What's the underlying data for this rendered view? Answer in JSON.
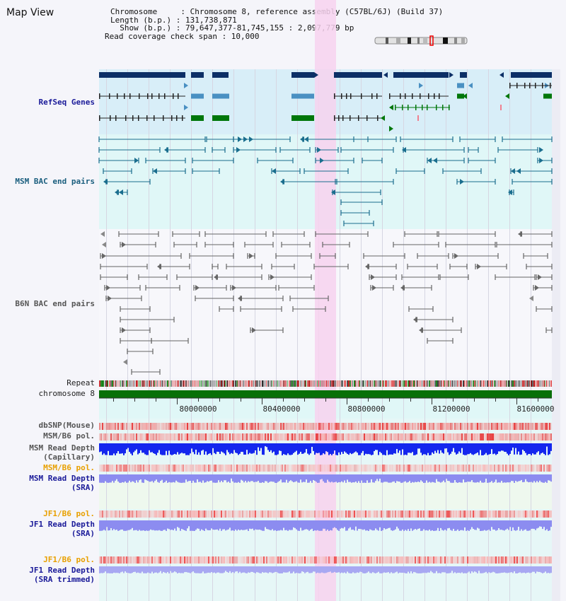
{
  "page_title": "Map View",
  "info": {
    "chromosome_line": "Chromosome     : Chromosome 8, reference assembly (C57BL/6J) (Build 37)",
    "length_line": "Length (b.p.) : 131,738,871",
    "show_line": "  Show (b.p.) : 79,647,377-81,745,155 : 2,097,779 bp",
    "coverage_line": "Read coverage check span : 10,000"
  },
  "tracks": {
    "refseq": "RefSeq Genes",
    "msm_bac": "MSM BAC end pairs",
    "b6n_bac": "B6N BAC end pairs",
    "repeat": "Repeat",
    "chromosome": "chromosome 8",
    "dbsnp": "dbSNP(Mouse)",
    "msm_pol_1": "MSM/B6 pol.",
    "msm_depth_cap_1": "MSM Read Depth",
    "msm_depth_cap_2": "(Capillary)",
    "msm_pol_2": "MSM/B6 pol.",
    "msm_depth_sra_1": "MSM Read Depth",
    "msm_depth_sra_2": "(SRA)",
    "jf1_pol_1": "JF1/B6 pol.",
    "jf1_depth_sra_1": "JF1 Read Depth",
    "jf1_depth_sra_2": "(SRA)",
    "jf1_pol_2": "JF1/B6 pol.",
    "jf1_depth_trim_1": "JF1 Read Depth",
    "jf1_depth_trim_2": "(SRA trimmed)"
  },
  "axis": {
    "ticks": [
      "80000000",
      "80400000",
      "80800000",
      "81200000",
      "81600000"
    ]
  },
  "colors": {
    "refseq_dark": "#0c2f66",
    "refseq_mid": "#4a90c2",
    "refseq_green": "#00770a",
    "msm_teal": "#1a6e8e",
    "b6n_gray": "#666666",
    "highlight": "#f7d2ef",
    "depth_blue": "#1427ee",
    "depth_light": "#8c8cf0",
    "pol_red": "#e83a3a",
    "chrom_green": "#087008"
  }
}
